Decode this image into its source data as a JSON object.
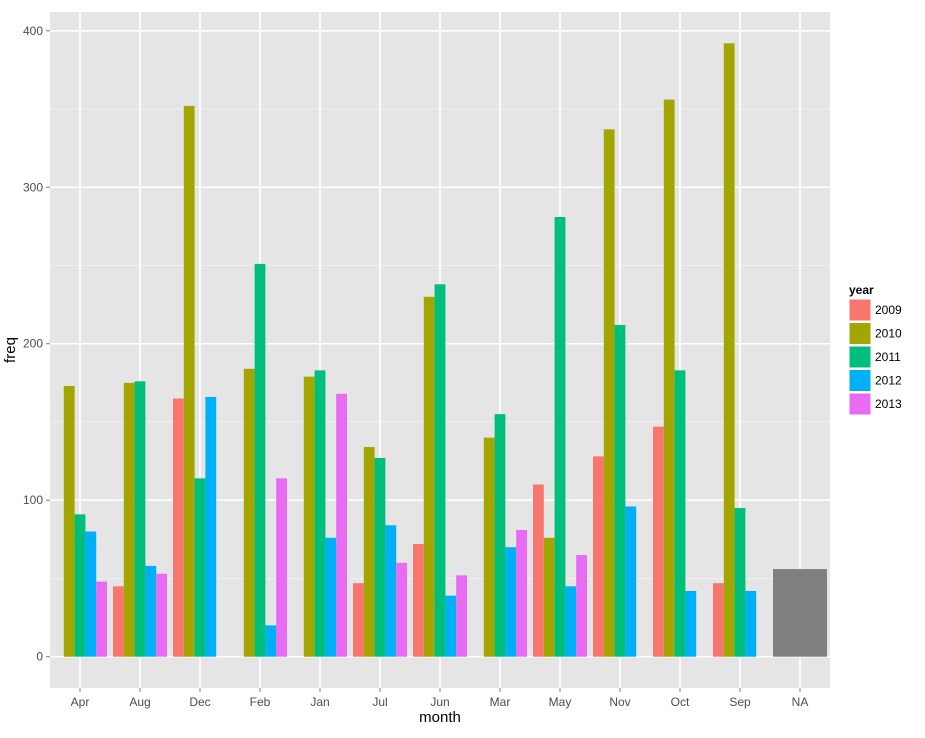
{
  "chart_data": {
    "type": "bar",
    "title": "",
    "xlabel": "month",
    "ylabel": "freq",
    "ylim": [
      -20,
      412
    ],
    "yticks": [
      0,
      100,
      200,
      300,
      400
    ],
    "grid": true,
    "legend_position": "right",
    "categories": [
      "Apr",
      "Aug",
      "Dec",
      "Feb",
      "Jan",
      "Jul",
      "Jun",
      "Mar",
      "May",
      "Nov",
      "Oct",
      "Sep",
      "NA"
    ],
    "legend": {
      "title": "year",
      "entries": [
        "2009",
        "2010",
        "2011",
        "2012",
        "2013"
      ]
    },
    "series": [
      {
        "name": "2009",
        "color": "#F8766D",
        "values": [
          null,
          45,
          165,
          null,
          null,
          47,
          72,
          null,
          110,
          128,
          147,
          47,
          null
        ]
      },
      {
        "name": "2010",
        "color": "#A3A500",
        "values": [
          173,
          175,
          352,
          184,
          179,
          134,
          230,
          140,
          76,
          337,
          356,
          392,
          null
        ]
      },
      {
        "name": "2011",
        "color": "#00BF7D",
        "values": [
          91,
          176,
          114,
          251,
          183,
          127,
          238,
          155,
          281,
          212,
          183,
          95,
          null
        ]
      },
      {
        "name": "2012",
        "color": "#00B0F6",
        "values": [
          80,
          58,
          166,
          20,
          76,
          84,
          39,
          70,
          45,
          96,
          42,
          42,
          null
        ]
      },
      {
        "name": "2013",
        "color": "#E76BF3",
        "values": [
          48,
          53,
          null,
          114,
          168,
          60,
          52,
          81,
          65,
          null,
          null,
          null,
          null
        ]
      }
    ],
    "na_bar": {
      "category": "NA",
      "value": 56,
      "color": "#7F7F7F"
    }
  }
}
